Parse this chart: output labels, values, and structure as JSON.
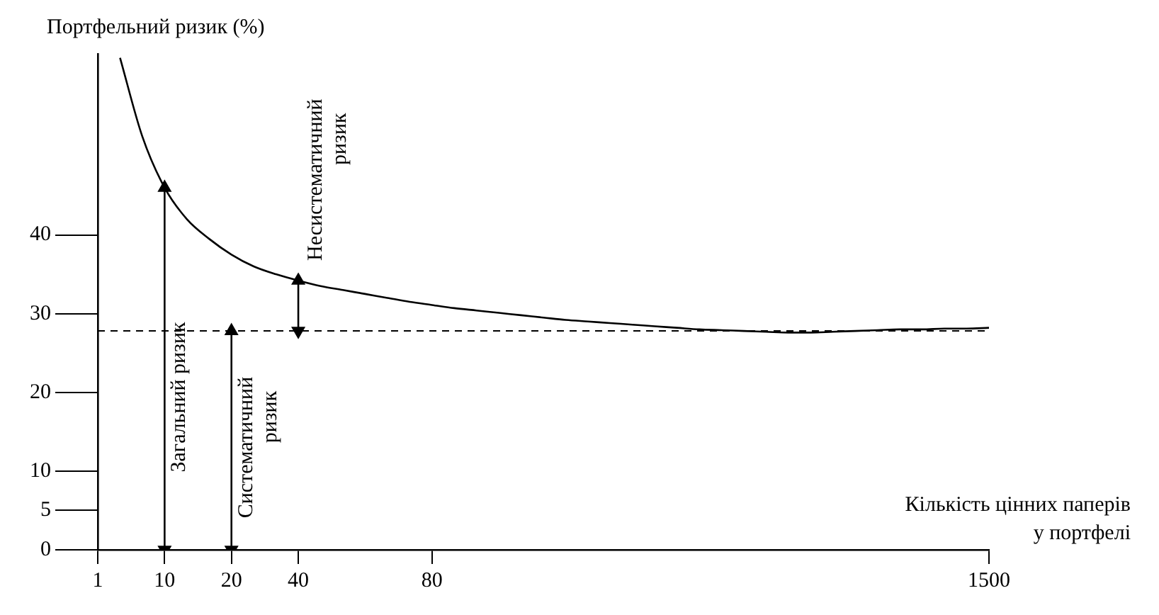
{
  "chart_data": {
    "type": "line",
    "ylabel": "Портфельний ризик (%)",
    "xlabel": "Кількість цінних паперів\nу портфелі",
    "categories": [
      "1",
      null,
      null,
      "10",
      null,
      null,
      "20",
      null,
      null,
      "40",
      null,
      null,
      null,
      null,
      null,
      "80",
      null,
      null,
      null,
      null,
      null,
      null,
      null,
      null,
      null,
      null,
      null,
      null,
      null,
      null,
      null,
      null,
      null,
      null,
      null,
      null,
      null,
      null,
      null,
      null,
      "1500"
    ],
    "series": [
      {
        "color": "#000000",
        "values": [
          null,
          62.5,
          52.5,
          46,
          42,
          39.5,
          37.5,
          36,
          35,
          34.2,
          33.5,
          33,
          32.5,
          32,
          31.5,
          31.1,
          30.7,
          30.4,
          30.1,
          29.8,
          29.5,
          29.2,
          29,
          28.8,
          28.6,
          28.4,
          28.2,
          28,
          27.9,
          27.8,
          27.7,
          27.6,
          27.6,
          27.7,
          27.8,
          27.9,
          28,
          28,
          28.1,
          28.1,
          28.2
        ]
      },
      {
        "type": "line",
        "color": "#000000",
        "marker": "triangle",
        "x": [
          "10",
          "10"
        ],
        "values": [
          0,
          46
        ]
      },
      {
        "type": "line",
        "color": "#000000",
        "marker": "triangle",
        "x": [
          "20",
          "20"
        ],
        "values": [
          0,
          27.8
        ]
      },
      {
        "type": "line",
        "color": "#000000",
        "marker": "triangle",
        "x": [
          "40",
          "40"
        ],
        "values": [
          27.8,
          34.2
        ]
      }
    ],
    "ylim": [
      0,
      63
    ],
    "yticks": [
      0,
      5,
      10,
      20,
      30,
      40
    ],
    "grid": false,
    "legend": false,
    "marker": "none",
    "line_style": "solid",
    "ref_lines": [
      {
        "axis": "y",
        "value": 27.8,
        "line_style": "dashed",
        "color": "#000000"
      }
    ],
    "annotations": [
      "Загальний ризик",
      "Систематичний ризик",
      "Несистематичний ризик"
    ]
  }
}
